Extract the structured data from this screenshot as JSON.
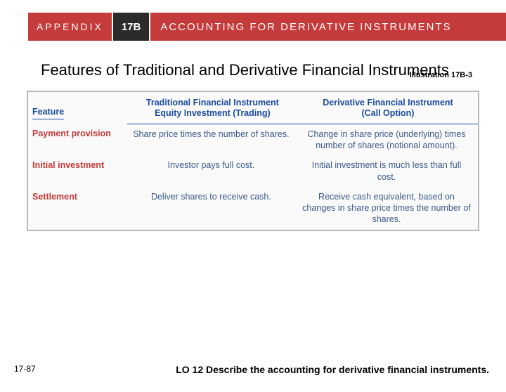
{
  "header": {
    "appendix_label": "APPENDIX",
    "tag": "17B",
    "title": "ACCOUNTING FOR DERIVATIVE INSTRUMENTS"
  },
  "subtitle": "Features of Traditional and Derivative Financial Instruments",
  "illustration_label": "Illustration 17B-3",
  "table": {
    "columns": [
      "Feature",
      "Traditional Financial Instrument Equity Investment (Trading)",
      "Derivative Financial Instrument (Call Option)"
    ],
    "rows": [
      {
        "feature": "Payment provision",
        "traditional": "Share price times the number of shares.",
        "derivative": "Change in share price (underlying) times number of shares (notional amount)."
      },
      {
        "feature": "Initial investment",
        "traditional": "Investor pays full cost.",
        "derivative": "Initial investment is much less than full cost."
      },
      {
        "feature": "Settlement",
        "traditional": "Deliver shares to receive cash.",
        "derivative": "Receive cash equivalent, based on changes in share price times the number of shares."
      }
    ]
  },
  "page_number": "17-87",
  "learning_objective": "LO 12  Describe the accounting for derivative financial instruments.",
  "colors": {
    "accent_red": "#c53a3a",
    "accent_dark": "#2b2b2b",
    "header_blue": "#1a4aa0",
    "body_blue": "#3a5a88",
    "border_gray": "#b9b9b9"
  }
}
